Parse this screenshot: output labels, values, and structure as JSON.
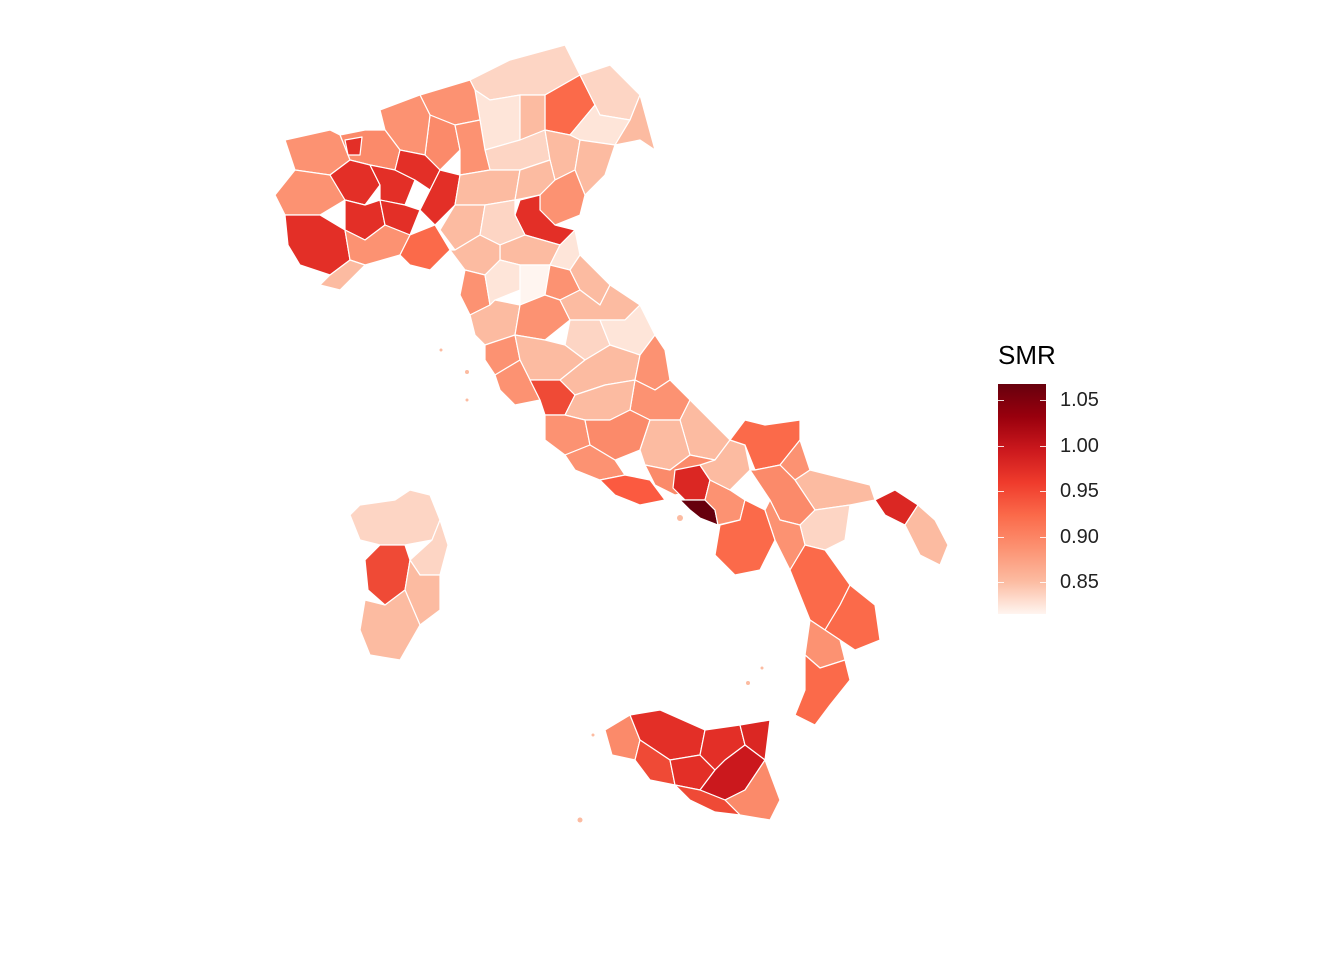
{
  "legend": {
    "title": "SMR",
    "ticks": [
      "1.05",
      "1.00",
      "0.95",
      "0.90",
      "0.85"
    ],
    "tick_values": [
      1.05,
      1.0,
      0.95,
      0.9,
      0.85
    ],
    "range": [
      0.815,
      1.068
    ],
    "colors": [
      "#fff5f0",
      "#fcbba1",
      "#fc9272",
      "#fb6a4a",
      "#ef3b2c",
      "#cb181d",
      "#99000d",
      "#67000d"
    ]
  },
  "map": {
    "region": "Italy provinces choropleth",
    "border_color": "#ffffff"
  }
}
